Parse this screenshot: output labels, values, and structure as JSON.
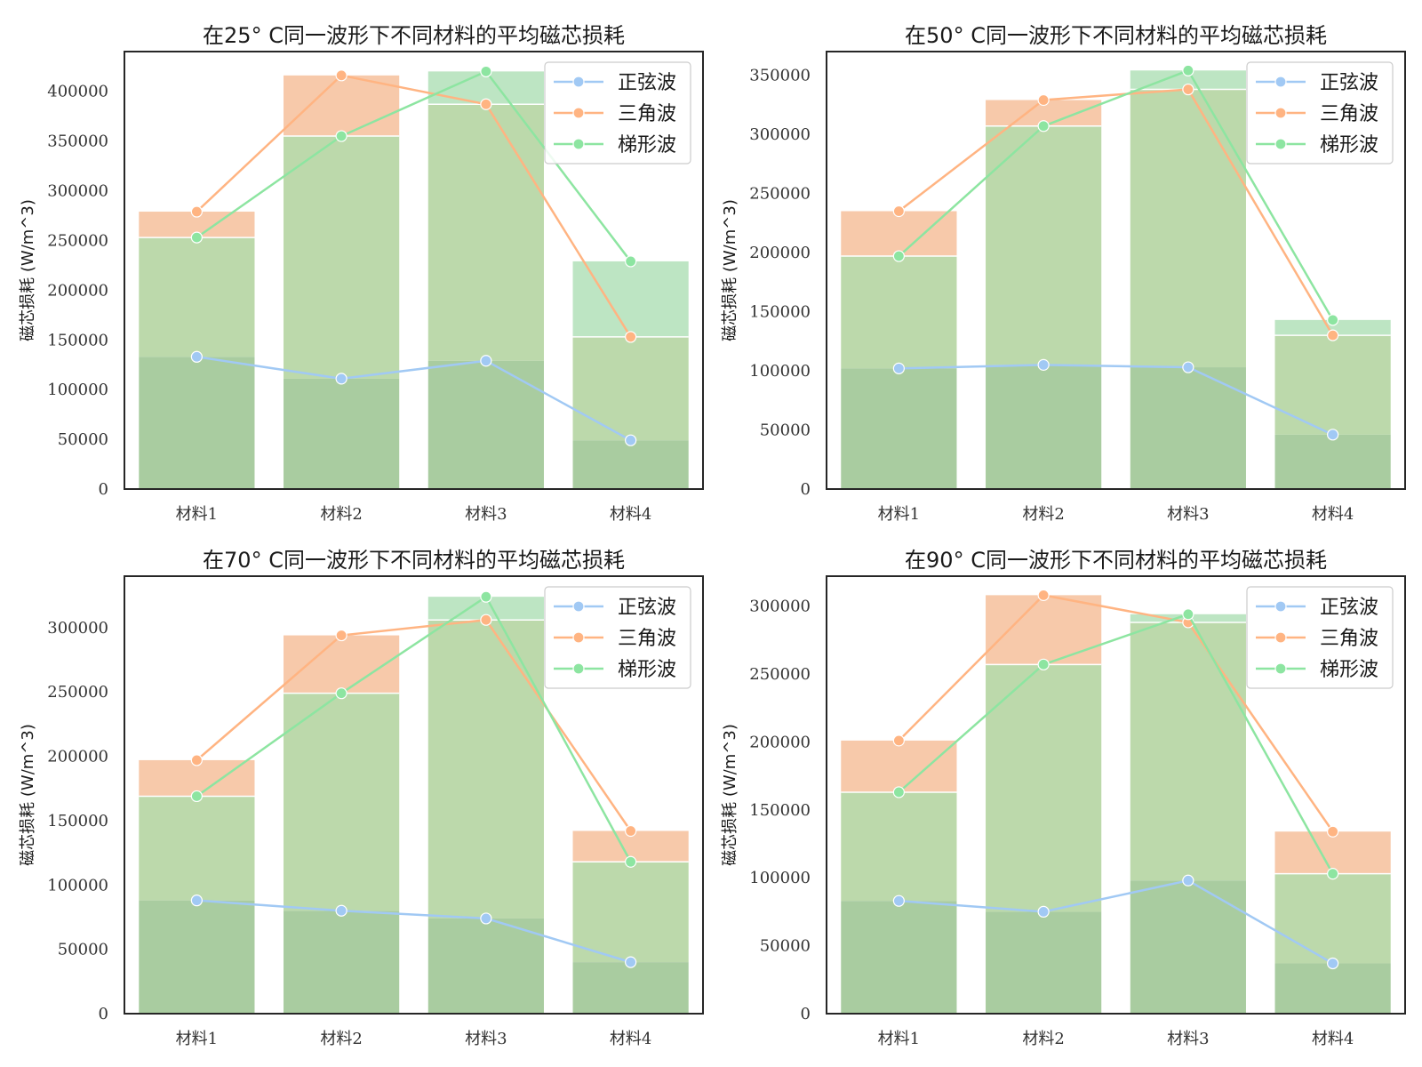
{
  "chart_data": [
    {
      "type": "bar",
      "title": "在25° C同一波形下不同材料的平均磁芯损耗",
      "xlabel": "",
      "ylabel": "磁芯损耗 (W/m^3)",
      "categories": [
        "材料1",
        "材料2",
        "材料3",
        "材料4"
      ],
      "ylim": [
        0,
        440000
      ],
      "yticks": [
        0,
        50000,
        100000,
        150000,
        200000,
        250000,
        300000,
        350000,
        400000
      ],
      "series": [
        {
          "name": "正弦波",
          "values": [
            133000,
            111000,
            129000,
            49000
          ]
        },
        {
          "name": "三角波",
          "values": [
            279000,
            416000,
            387000,
            153000
          ]
        },
        {
          "name": "梯形波",
          "values": [
            253000,
            355000,
            420000,
            229000
          ]
        }
      ],
      "legend": "top-right",
      "grid": false
    },
    {
      "type": "bar",
      "title": "在50° C同一波形下不同材料的平均磁芯损耗",
      "xlabel": "",
      "ylabel": "磁芯损耗 (W/m^3)",
      "categories": [
        "材料1",
        "材料2",
        "材料3",
        "材料4"
      ],
      "ylim": [
        0,
        370000
      ],
      "yticks": [
        0,
        50000,
        100000,
        150000,
        200000,
        250000,
        300000,
        350000
      ],
      "series": [
        {
          "name": "正弦波",
          "values": [
            102000,
            105000,
            103000,
            46000
          ]
        },
        {
          "name": "三角波",
          "values": [
            235000,
            329000,
            338000,
            130000
          ]
        },
        {
          "name": "梯形波",
          "values": [
            197000,
            307000,
            354000,
            143000
          ]
        }
      ],
      "legend": "top-right",
      "grid": false
    },
    {
      "type": "bar",
      "title": "在70° C同一波形下不同材料的平均磁芯损耗",
      "xlabel": "",
      "ylabel": "磁芯损耗 (W/m^3)",
      "categories": [
        "材料1",
        "材料2",
        "材料3",
        "材料4"
      ],
      "ylim": [
        0,
        340000
      ],
      "yticks": [
        0,
        50000,
        100000,
        150000,
        200000,
        250000,
        300000
      ],
      "series": [
        {
          "name": "正弦波",
          "values": [
            88000,
            80000,
            74000,
            40000
          ]
        },
        {
          "name": "三角波",
          "values": [
            197000,
            294000,
            306000,
            142000
          ]
        },
        {
          "name": "梯形波",
          "values": [
            169000,
            249000,
            324000,
            118000
          ]
        }
      ],
      "legend": "top-right",
      "grid": false
    },
    {
      "type": "bar",
      "title": "在90° C同一波形下不同材料的平均磁芯损耗",
      "xlabel": "",
      "ylabel": "磁芯损耗 (W/m^3)",
      "categories": [
        "材料1",
        "材料2",
        "材料3",
        "材料4"
      ],
      "ylim": [
        0,
        322000
      ],
      "yticks": [
        0,
        50000,
        100000,
        150000,
        200000,
        250000,
        300000
      ],
      "series": [
        {
          "name": "正弦波",
          "values": [
            83000,
            75000,
            98000,
            37000
          ]
        },
        {
          "name": "三角波",
          "values": [
            201000,
            308000,
            288000,
            134000
          ]
        },
        {
          "name": "梯形波",
          "values": [
            163000,
            257000,
            294000,
            103000
          ]
        }
      ],
      "legend": "top-right",
      "grid": false
    }
  ],
  "colors": {
    "sine": "#a1c9f4",
    "triangle": "#ffb482",
    "trapezoid": "#8de5a1",
    "bar_triangle": "#f7c9aa",
    "bar_trapezoid": "#bde5c3",
    "bar_overlap": "#bcd9ab",
    "bar_base": "#a9cca0",
    "axis": "#262626"
  }
}
